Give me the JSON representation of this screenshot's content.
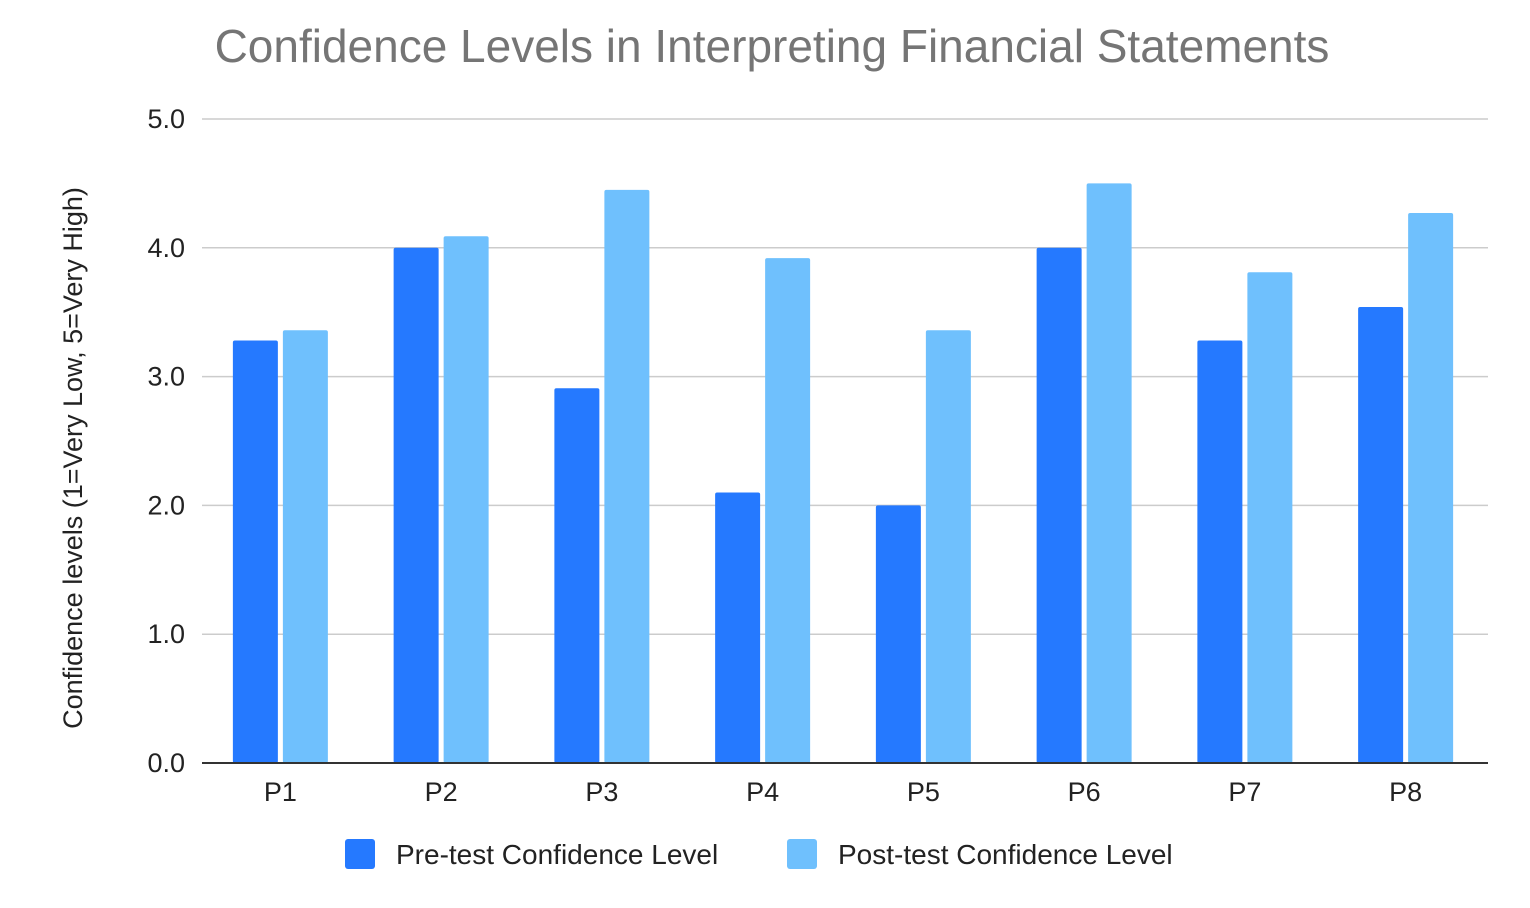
{
  "chart_data": {
    "type": "bar",
    "title": "Confidence Levels in Interpreting Financial Statements",
    "xlabel": "",
    "ylabel": "Confidence levels (1=Very Low, 5=Very High)",
    "categories": [
      "P1",
      "P2",
      "P3",
      "P4",
      "P5",
      "P6",
      "P7",
      "P8"
    ],
    "series": [
      {
        "name": "Pre-test Confidence Level",
        "color": "#2579ff",
        "values": [
          3.28,
          4.0,
          2.91,
          2.1,
          2.0,
          4.0,
          3.28,
          3.54
        ]
      },
      {
        "name": "Post-test Confidence Level",
        "color": "#6fc0fd",
        "values": [
          3.36,
          4.09,
          4.45,
          3.92,
          3.36,
          4.5,
          3.81,
          4.27
        ]
      }
    ],
    "ylim": [
      0,
      5
    ],
    "yticks": [
      "0.0",
      "1.0",
      "2.0",
      "3.0",
      "4.0",
      "5.0"
    ],
    "grid": true,
    "legend_position": "bottom"
  }
}
